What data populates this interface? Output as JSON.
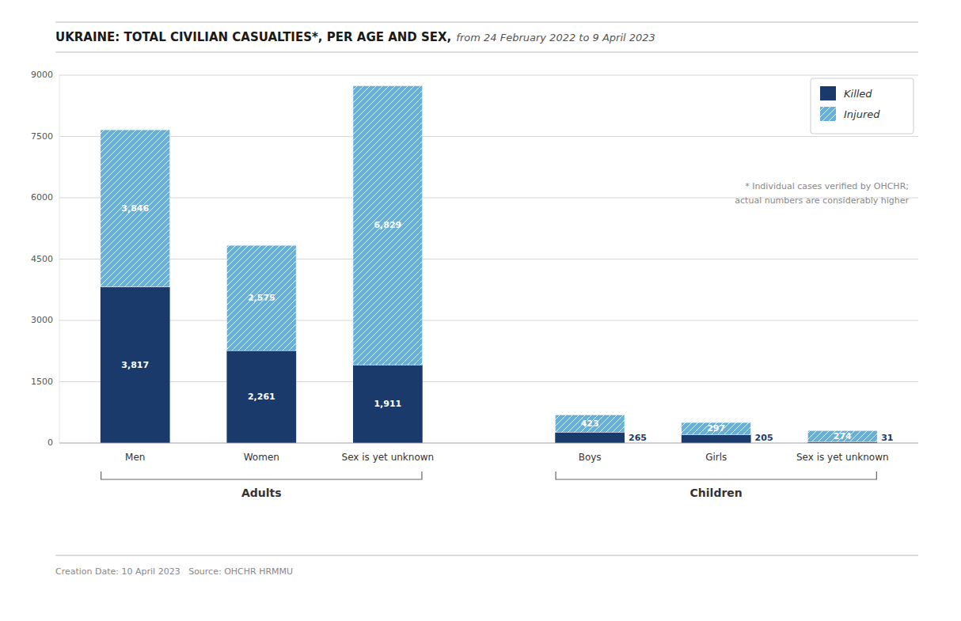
{
  "chart_data": {
    "type": "bar",
    "stacked": true,
    "title": "UKRAINE: TOTAL CIVILIAN CASUALTIES*, PER AGE AND SEX,",
    "subtitle": "from 24 February 2022 to 9 April 2023",
    "categories": [
      "Men",
      "Women",
      "Sex is yet unknown",
      "Boys",
      "Girls",
      "Sex is yet unknown"
    ],
    "groups": [
      {
        "name": "Adults",
        "size": 3
      },
      {
        "name": "Children",
        "size": 3
      }
    ],
    "series": [
      {
        "name": "Killed",
        "color": "#1a3a6b",
        "values": [
          3817,
          2261,
          1911,
          265,
          205,
          31
        ],
        "value_labels": [
          "3,817",
          "2,261",
          "1,911",
          "265",
          "205",
          "31"
        ]
      },
      {
        "name": "Injured",
        "color": "#6baed6",
        "values": [
          3846,
          2575,
          6829,
          423,
          297,
          274
        ],
        "value_labels": [
          "3,846",
          "2,575",
          "6,829",
          "423",
          "297",
          "274"
        ]
      }
    ],
    "ylim": [
      0,
      9000
    ],
    "yticks": [
      0,
      1500,
      3000,
      4500,
      6000,
      7500,
      9000
    ],
    "grid": true,
    "legend": "upper-right",
    "data_labels": true,
    "annotations": [
      "* Individual cases verified by OHCHR;\nactual numbers are considerably higher",
      "Creation Date: 10 April 2023   Source: OHCHR HRMMU"
    ]
  }
}
